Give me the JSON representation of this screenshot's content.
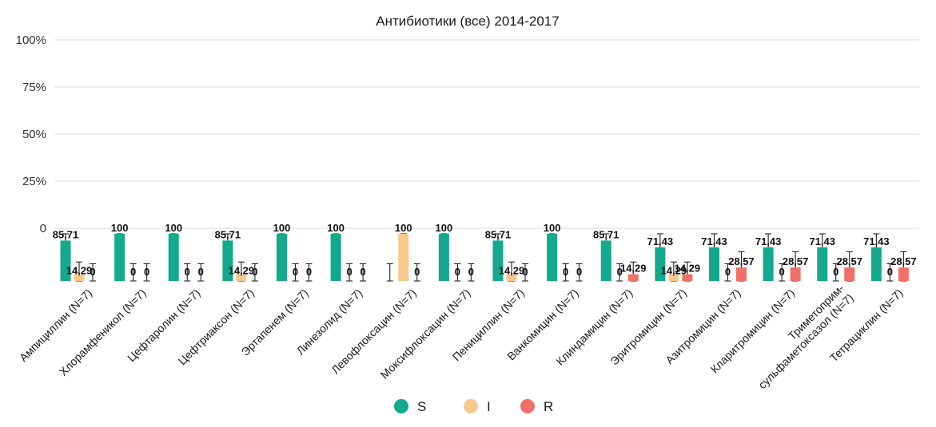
{
  "chart_data": {
    "type": "bar",
    "title": "Антибиотики (все) 2014-2017",
    "y_ticks": [
      "0",
      "25%",
      "50%",
      "75%",
      "100%"
    ],
    "categories": [
      "Ампициллин (N=7)",
      "Хлорамфеникол (N=7)",
      "Цефтаролин (N=7)",
      "Цефтриаксон (N=7)",
      "Эртапенем (N=7)",
      "Линезолид (N=7)",
      "Левофлоксацин (N=7)",
      "Моксифлоксацин (N=7)",
      "Пенициллин (N=7)",
      "Ванкомицин (N=7)",
      "Клиндамицин (N=7)",
      "Эритромицин (N=7)",
      "Азитромицин (N=7)",
      "Кларитромицин (N=7)",
      "Триметоприм-сульфаметоксазол (N=7)",
      "Тетрациклин (N=7)"
    ],
    "series": [
      {
        "name": "S",
        "color": "#12a98c",
        "values": [
          85.71,
          100,
          100,
          85.71,
          100,
          100,
          0,
          100,
          85.71,
          100,
          85.71,
          71.43,
          71.43,
          71.43,
          71.43,
          71.43
        ],
        "labels": [
          "85,71",
          "100",
          "100",
          "85,71",
          "100",
          "100",
          "",
          "100",
          "85,71",
          "100",
          "85,71",
          "71,43",
          "71,43",
          "71,43",
          "71,43",
          "71,43"
        ]
      },
      {
        "name": "I",
        "color": "#f8c98c",
        "values": [
          14.29,
          0,
          0,
          14.29,
          0,
          0,
          100,
          0,
          14.29,
          0,
          0,
          14.29,
          0,
          0,
          0,
          0
        ],
        "labels": [
          "14,29",
          "0",
          "0",
          "14,29",
          "0",
          "0",
          "100",
          "0",
          "14,29",
          "0",
          "0",
          "14,29",
          "0",
          "0",
          "0",
          "0"
        ]
      },
      {
        "name": "R",
        "color": "#ef7068",
        "values": [
          0,
          0,
          0,
          0,
          0,
          0,
          0,
          0,
          0,
          0,
          14.29,
          14.29,
          28.57,
          28.57,
          28.57,
          28.57
        ],
        "labels": [
          "0",
          "0",
          "0",
          "0",
          "0",
          "0",
          "0",
          "0",
          "0",
          "0",
          "14,29",
          "14,29",
          "28,57",
          "28,57",
          "28,57",
          "28,57"
        ]
      }
    ],
    "error_bars": "yes",
    "grid": "horizontal",
    "legend_position": "bottom-center"
  }
}
